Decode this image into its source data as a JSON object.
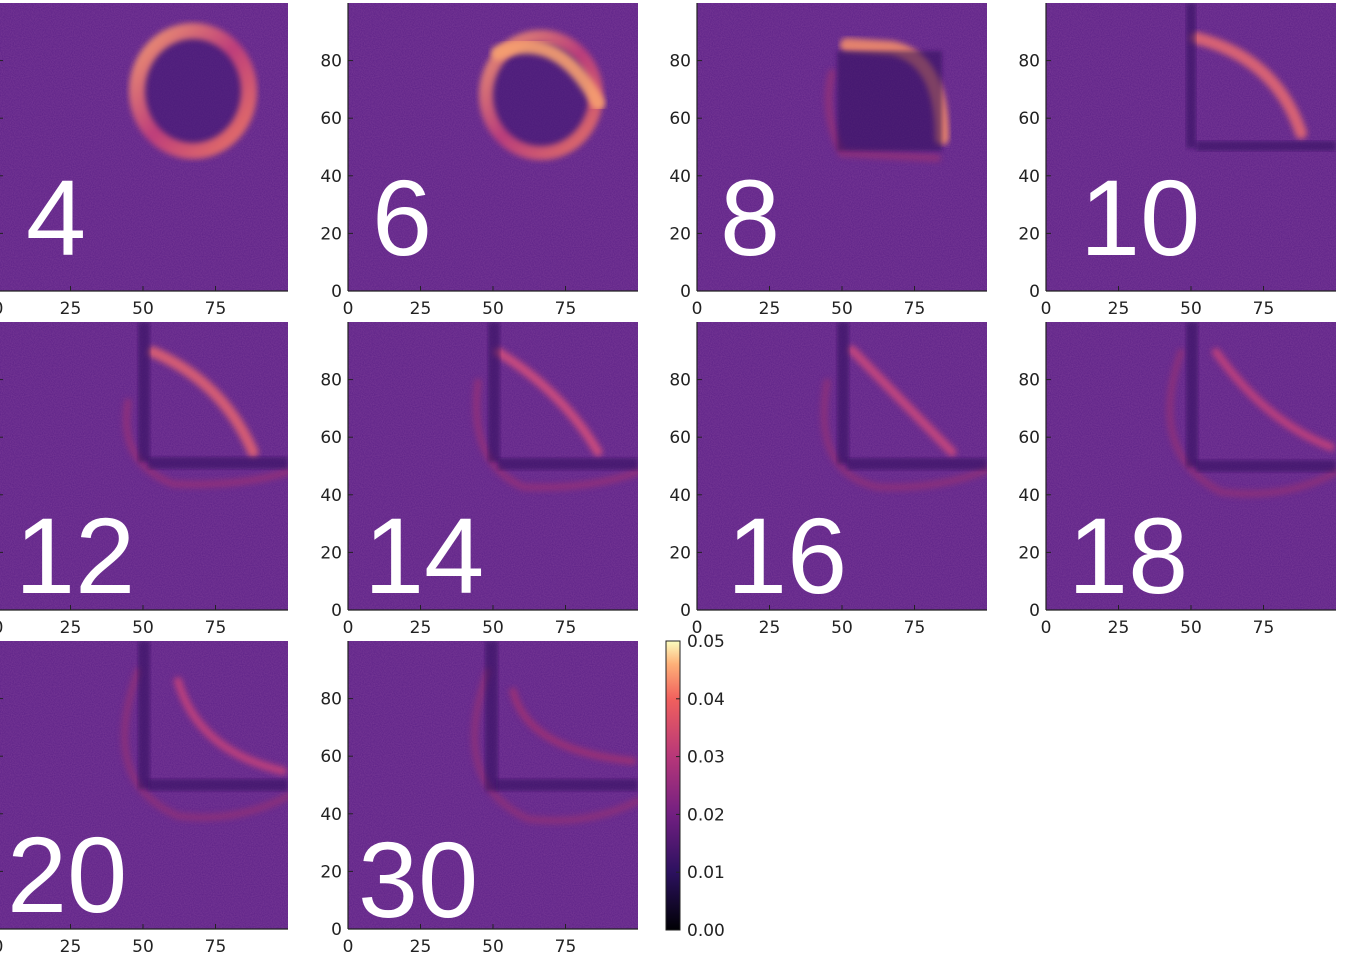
{
  "chart_data": {
    "type": "heatmap",
    "description_of_grid": "",
    "x_ticks": [
      "0",
      "25",
      "50",
      "75"
    ],
    "y_ticks": [
      "0",
      "20",
      "40",
      "60",
      "80"
    ],
    "xlim": [
      0,
      100
    ],
    "ylim": [
      0,
      100
    ],
    "colormap": "magma",
    "panels": [
      {
        "label": "4"
      },
      {
        "label": "6"
      },
      {
        "label": "8"
      },
      {
        "label": "10"
      },
      {
        "label": "12"
      },
      {
        "label": "14"
      },
      {
        "label": "16"
      },
      {
        "label": "18"
      },
      {
        "label": "20"
      },
      {
        "label": "30"
      }
    ],
    "colorbar": {
      "range": [
        0.0,
        0.05
      ],
      "ticks": [
        "0.00",
        "0.01",
        "0.02",
        "0.03",
        "0.04",
        "0.05"
      ]
    }
  },
  "colors": {
    "background_field": "#5a1f86",
    "axis": "#222222"
  }
}
